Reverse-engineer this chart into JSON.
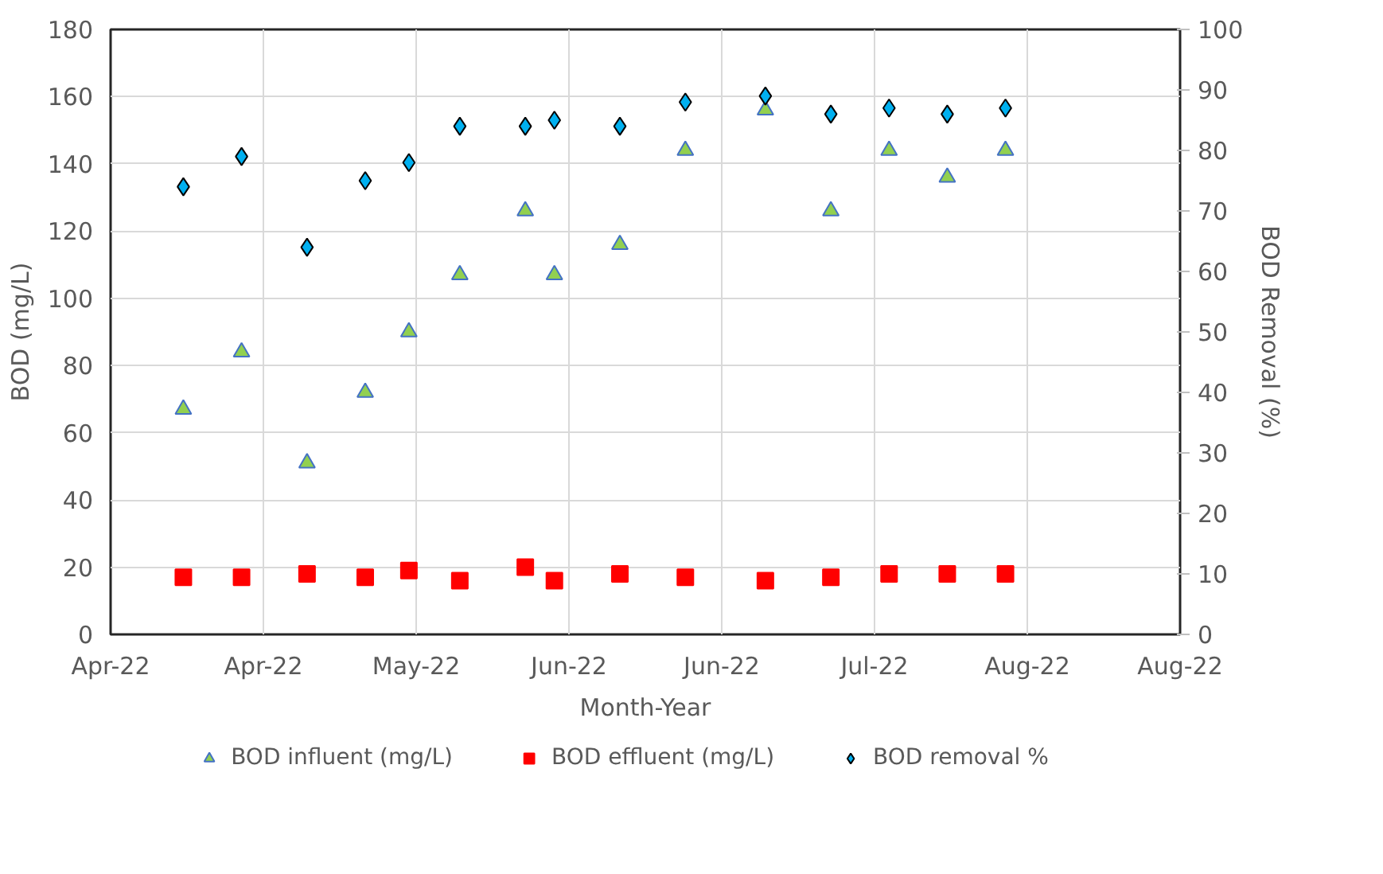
{
  "chart_data": {
    "type": "scatter",
    "xlabel": "Month-Year",
    "ylabel": "BOD (mg/L)",
    "y2label": "BOD Removal (%)",
    "x": [
      "2022-04-11",
      "2022-04-19",
      "2022-04-28",
      "2022-05-06",
      "2022-05-12",
      "2022-05-19",
      "2022-05-28",
      "2022-06-01",
      "2022-06-10",
      "2022-06-19",
      "2022-06-30",
      "2022-07-09",
      "2022-07-17",
      "2022-07-25",
      "2022-08-02"
    ],
    "series": [
      {
        "name": "BOD influent (mg/L)",
        "color": "#92d050",
        "marker": "triangle",
        "values": [
          67,
          84,
          51,
          72,
          90,
          107,
          126,
          107,
          116,
          144,
          156,
          126,
          144,
          136,
          144
        ]
      },
      {
        "name": "BOD effluent (mg/L)",
        "color": "#ff0000",
        "marker": "square",
        "values": [
          17,
          17,
          18,
          17,
          19,
          16,
          20,
          16,
          18,
          17,
          16,
          17,
          18,
          18,
          18
        ]
      },
      {
        "name": "BOD removal %",
        "color": "#00b0f0",
        "marker": "diamond",
        "axis": "y2",
        "values": [
          74,
          79,
          64,
          75,
          78,
          84,
          84,
          85,
          84,
          88,
          89,
          86,
          87,
          86,
          87
        ]
      }
    ],
    "xlim": [
      "2022-04-01",
      "2022-08-26"
    ],
    "xticks": [
      {
        "value": "2022-04-01",
        "label": "Apr-22"
      },
      {
        "value": "2022-04-22",
        "label": "Apr-22"
      },
      {
        "value": "2022-05-13",
        "label": "May-22"
      },
      {
        "value": "2022-06-03",
        "label": "Jun-22"
      },
      {
        "value": "2022-06-24",
        "label": "Jun-22"
      },
      {
        "value": "2022-07-15",
        "label": "Jul-22"
      },
      {
        "value": "2022-08-05",
        "label": "Aug-22"
      },
      {
        "value": "2022-08-26",
        "label": "Aug-22"
      }
    ],
    "ylim": [
      0,
      180
    ],
    "yticks": [
      0,
      20,
      40,
      60,
      80,
      100,
      120,
      140,
      160,
      180
    ],
    "y2lim": [
      0,
      100
    ],
    "y2ticks": [
      0,
      10,
      20,
      30,
      40,
      50,
      60,
      70,
      80,
      90,
      100
    ],
    "grid": true,
    "legend": "bottom"
  }
}
